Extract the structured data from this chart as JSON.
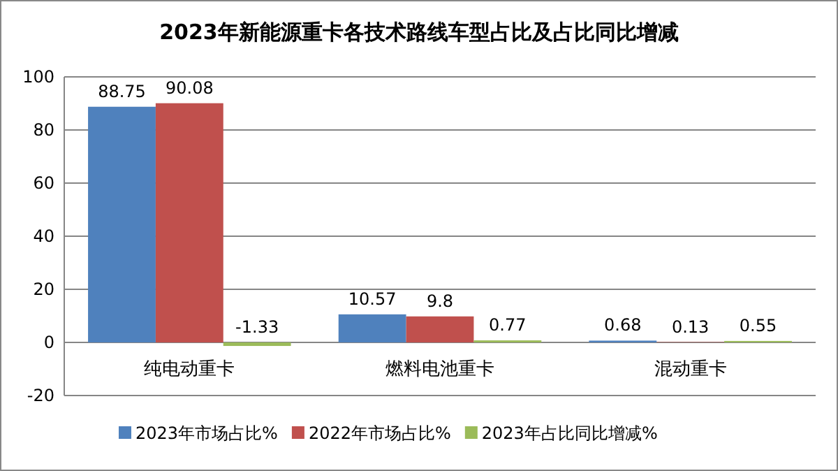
{
  "chart_data": {
    "type": "bar",
    "title": "2023年新能源重卡各技术路线车型占比及占比同比增减",
    "categories": [
      "纯电动重卡",
      "燃料电池重卡",
      "混动重卡"
    ],
    "series": [
      {
        "name": "2023年市场占比%",
        "color": "#4f81bd",
        "values": [
          88.75,
          10.57,
          0.68
        ]
      },
      {
        "name": "2022年市场占比%",
        "color": "#c0504d",
        "values": [
          90.08,
          9.8,
          0.13
        ]
      },
      {
        "name": "2023年占比同比增减%",
        "color": "#9bbb59",
        "values": [
          -1.33,
          0.77,
          0.55
        ]
      }
    ],
    "ylim": [
      -20,
      100
    ],
    "yticks": [
      -20,
      0,
      20,
      40,
      60,
      80,
      100
    ],
    "grid": "y",
    "legend": "bottom",
    "data_labels": true
  }
}
